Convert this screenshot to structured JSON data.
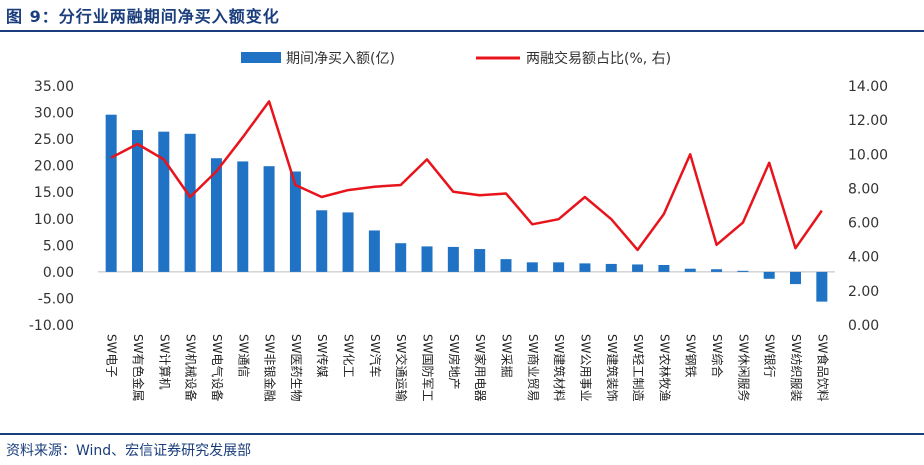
{
  "figure": {
    "title": "图 9：分行业两融期间净买入额变化",
    "source": "资料来源：Wind、宏信证券研究发展部"
  },
  "chart_data": {
    "type": "bar",
    "categories": [
      "SW电子",
      "SW有色金属",
      "SW计算机",
      "SW机械设备",
      "SW电气设备",
      "SW通信",
      "SW非银金融",
      "SW医药生物",
      "SW传媒",
      "SW化工",
      "SW汽车",
      "SW交通运输",
      "SW国防军工",
      "SW房地产",
      "SW家用电器",
      "SW采掘",
      "SW商业贸易",
      "SW建筑材料",
      "SW公用事业",
      "SW建筑装饰",
      "SW轻工制造",
      "SW农林牧渔",
      "SW钢铁",
      "SW综合",
      "SW休闲服务",
      "SW银行",
      "SW纺织服装",
      "SW食品饮料"
    ],
    "series": [
      {
        "name": "期间净买入额(亿)",
        "type": "bar",
        "axis": "left",
        "color": "#1f72c4",
        "values": [
          29.6,
          26.7,
          26.4,
          26.0,
          21.4,
          20.8,
          19.9,
          18.9,
          11.6,
          11.2,
          7.8,
          5.4,
          4.8,
          4.7,
          4.3,
          2.4,
          1.8,
          1.8,
          1.6,
          1.5,
          1.4,
          1.3,
          0.6,
          0.5,
          0.2,
          -1.3,
          -2.3,
          -5.6
        ]
      },
      {
        "name": "两融交易额占比(%, 右)",
        "type": "line",
        "axis": "right",
        "color": "#e8141c",
        "values": [
          9.8,
          10.6,
          9.7,
          7.5,
          9.0,
          11.0,
          13.1,
          8.2,
          7.5,
          7.9,
          8.1,
          8.2,
          9.7,
          7.8,
          7.6,
          7.7,
          5.9,
          6.2,
          7.5,
          6.2,
          4.4,
          6.5,
          10.0,
          4.7,
          6.0,
          9.5,
          4.5,
          6.7
        ]
      }
    ],
    "y_left": {
      "ylim": [
        -10,
        35
      ],
      "ticks": [
        "35.00",
        "30.00",
        "25.00",
        "20.00",
        "15.00",
        "10.00",
        "5.00",
        "0.00",
        "-5.00",
        "-10.00"
      ]
    },
    "y_right": {
      "ylim": [
        0,
        14
      ],
      "ticks": [
        "14.00",
        "12.00",
        "10.00",
        "8.00",
        "6.00",
        "4.00",
        "2.00",
        "0.00"
      ]
    },
    "legend": {
      "placement": "top-center"
    },
    "grid": false
  }
}
